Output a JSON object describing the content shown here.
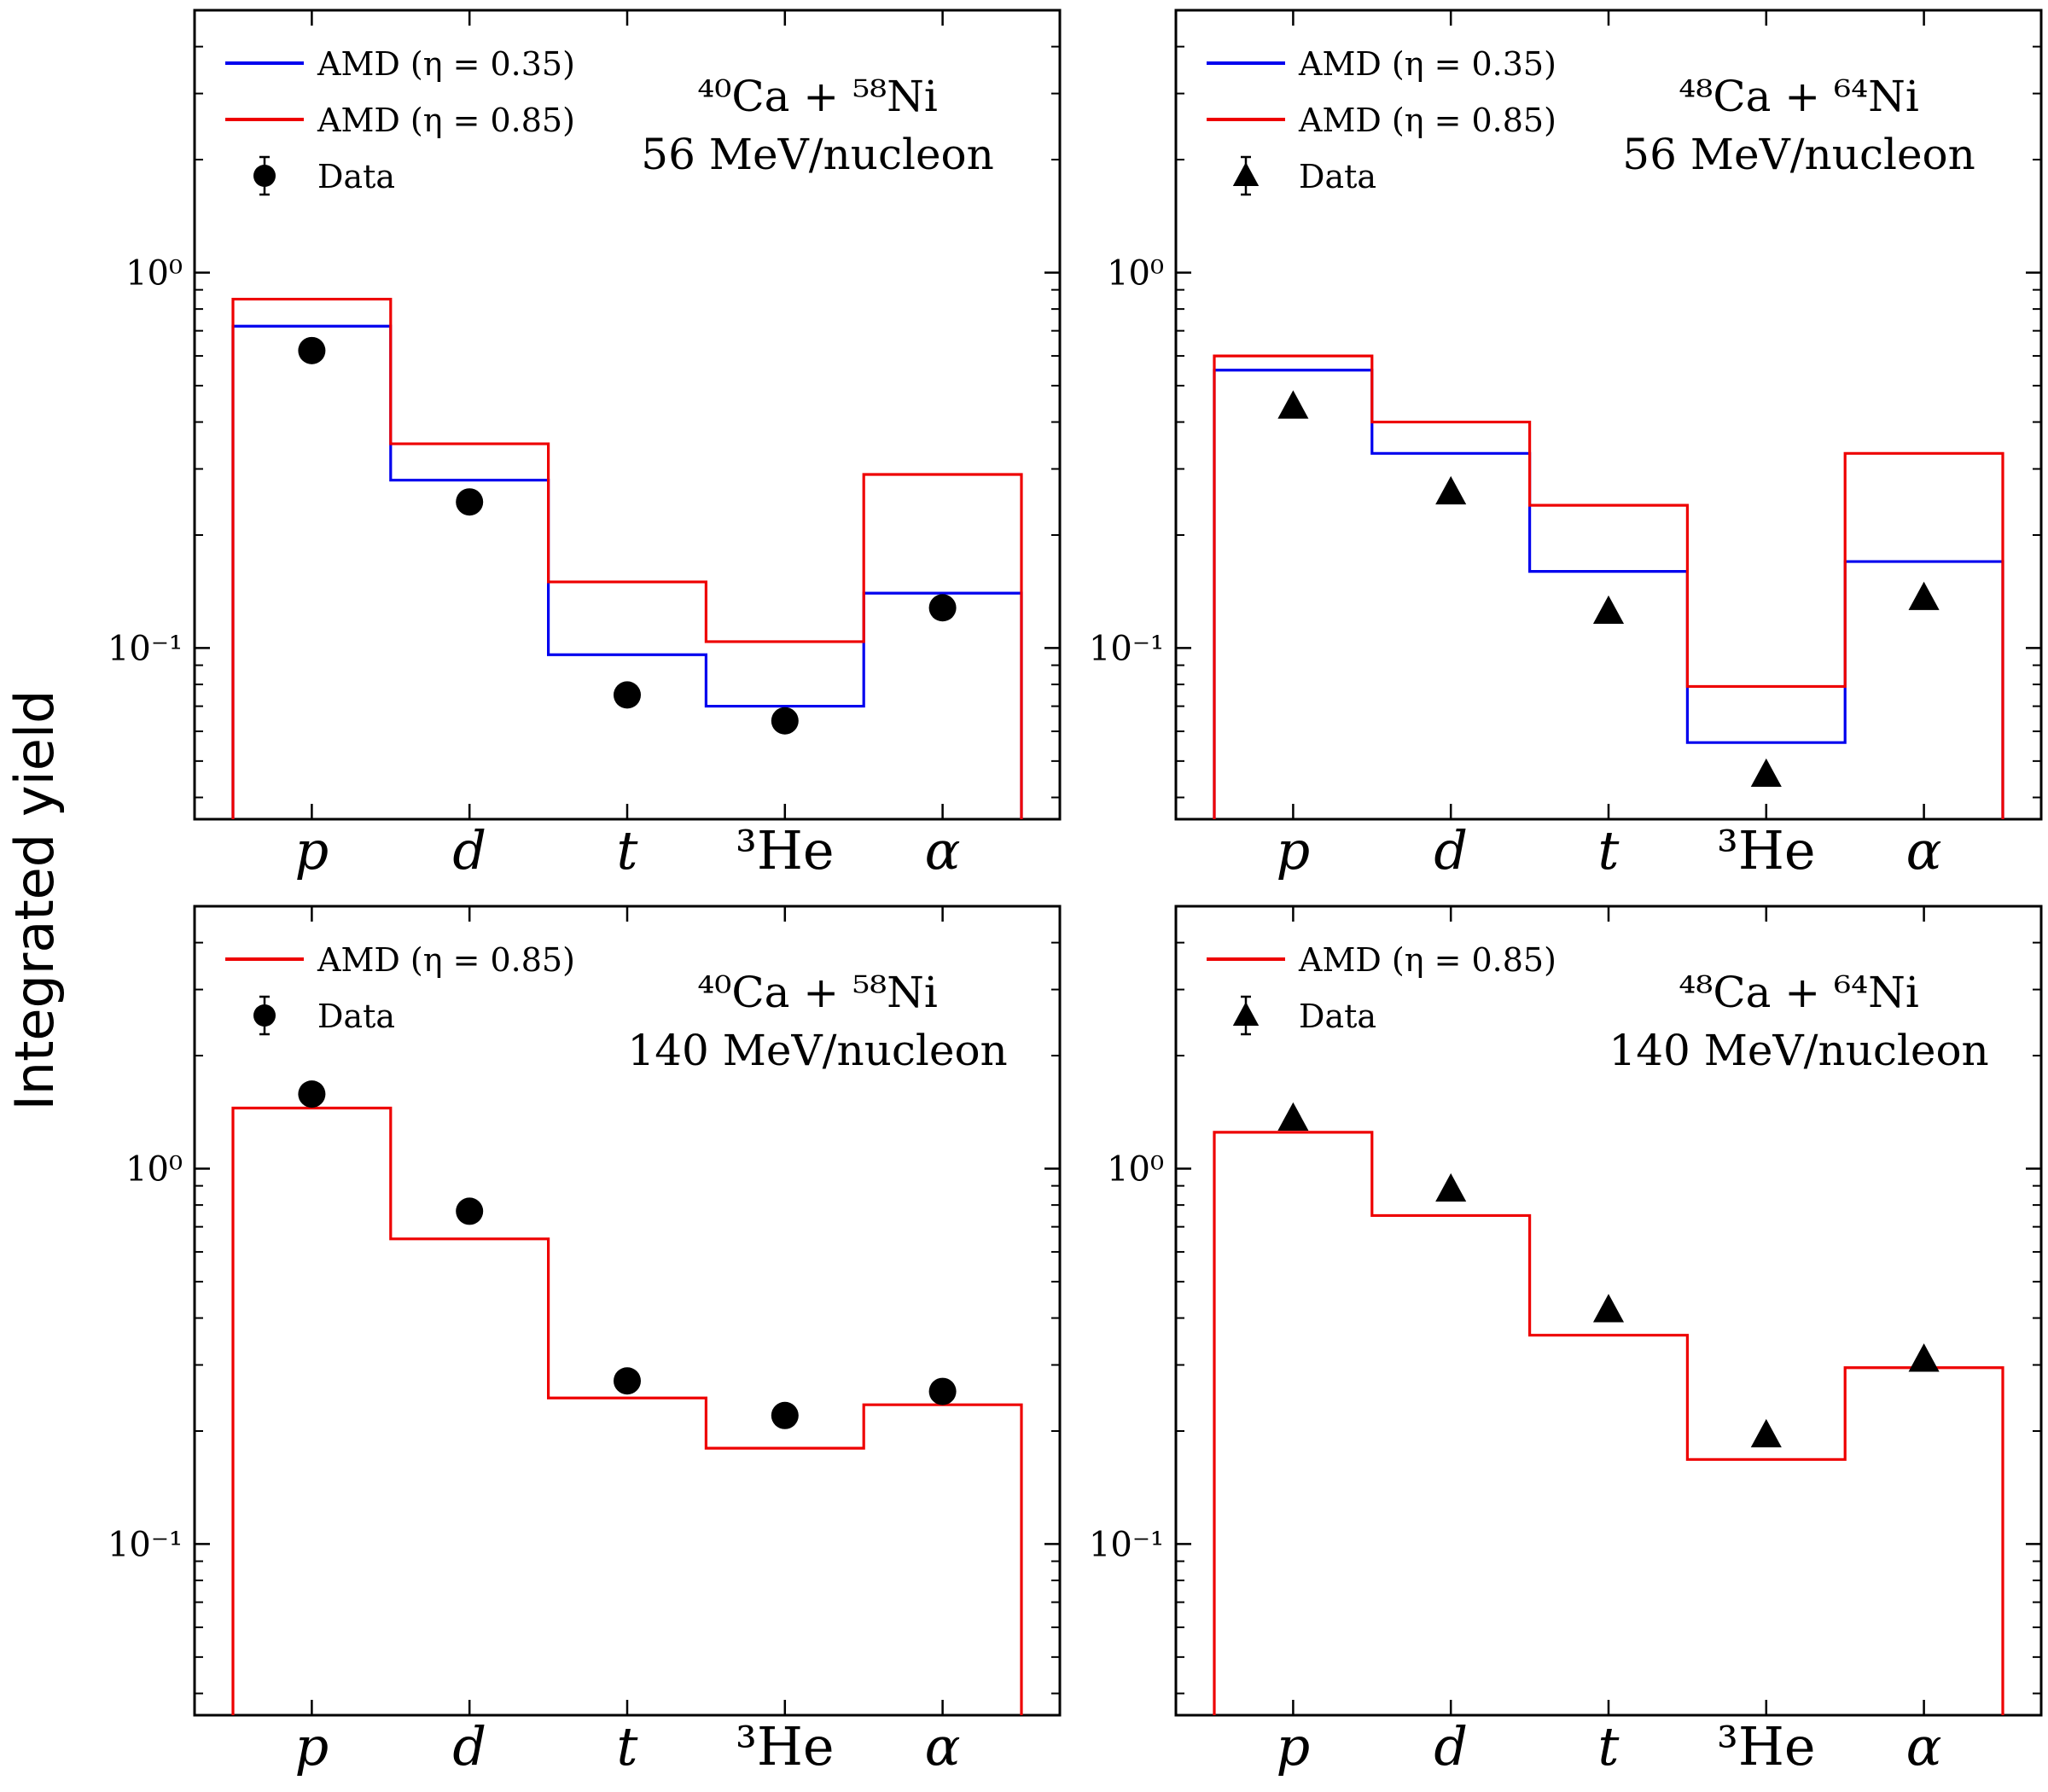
{
  "figure": {
    "ylabel": "Integrated yield",
    "colors": {
      "eta035": "#0000ee",
      "eta085": "#ee0000",
      "data": "#000000"
    }
  },
  "chart_data": [
    {
      "type": "step",
      "panel": "top-left",
      "title_lines": [
        "⁴⁰Ca + ⁵⁸Ni",
        "56 MeV/nucleon"
      ],
      "categories": [
        "p",
        "d",
        "t",
        "³He",
        "α"
      ],
      "ylim": [
        0.035,
        5
      ],
      "yscale": "log",
      "ytick_labels": [
        "10⁰",
        "10⁻¹"
      ],
      "legend_position": "top-left",
      "data_marker": "circle",
      "series": [
        {
          "name": "AMD (η = 0.35)",
          "color": "#0000ee",
          "values": [
            0.72,
            0.28,
            0.096,
            0.07,
            0.14
          ]
        },
        {
          "name": "AMD (η = 0.85)",
          "color": "#ee0000",
          "values": [
            0.85,
            0.35,
            0.15,
            0.104,
            0.29
          ]
        },
        {
          "name": "Data",
          "color": "#000000",
          "values": [
            0.62,
            0.245,
            0.075,
            0.064,
            0.128
          ]
        }
      ]
    },
    {
      "type": "step",
      "panel": "top-right",
      "title_lines": [
        "⁴⁸Ca + ⁶⁴Ni",
        "56 MeV/nucleon"
      ],
      "categories": [
        "p",
        "d",
        "t",
        "³He",
        "α"
      ],
      "ylim": [
        0.035,
        5
      ],
      "yscale": "log",
      "ytick_labels": [
        "10⁰",
        "10⁻¹"
      ],
      "legend_position": "top-left",
      "data_marker": "triangle",
      "series": [
        {
          "name": "AMD (η = 0.35)",
          "color": "#0000ee",
          "values": [
            0.55,
            0.33,
            0.16,
            0.056,
            0.17
          ]
        },
        {
          "name": "AMD (η = 0.85)",
          "color": "#ee0000",
          "values": [
            0.6,
            0.4,
            0.24,
            0.079,
            0.33
          ]
        },
        {
          "name": "Data",
          "color": "#000000",
          "values": [
            0.44,
            0.26,
            0.125,
            0.046,
            0.136
          ]
        }
      ]
    },
    {
      "type": "step",
      "panel": "bottom-left",
      "title_lines": [
        "⁴⁰Ca + ⁵⁸Ni",
        "140 MeV/nucleon"
      ],
      "categories": [
        "p",
        "d",
        "t",
        "³He",
        "α"
      ],
      "ylim": [
        0.035,
        5
      ],
      "yscale": "log",
      "ytick_labels": [
        "10⁰",
        "10⁻¹"
      ],
      "legend_position": "top-left",
      "data_marker": "circle",
      "series": [
        {
          "name": "AMD (η = 0.85)",
          "color": "#ee0000",
          "values": [
            1.45,
            0.65,
            0.245,
            0.18,
            0.235
          ]
        },
        {
          "name": "Data",
          "color": "#000000",
          "values": [
            1.58,
            0.77,
            0.272,
            0.22,
            0.255
          ]
        }
      ]
    },
    {
      "type": "step",
      "panel": "bottom-right",
      "title_lines": [
        "⁴⁸Ca + ⁶⁴Ni",
        "140 MeV/nucleon"
      ],
      "categories": [
        "p",
        "d",
        "t",
        "³He",
        "α"
      ],
      "ylim": [
        0.035,
        5
      ],
      "yscale": "log",
      "ytick_labels": [
        "10⁰",
        "10⁻¹"
      ],
      "legend_position": "top-left",
      "data_marker": "triangle",
      "series": [
        {
          "name": "AMD (η = 0.85)",
          "color": "#ee0000",
          "values": [
            1.25,
            0.75,
            0.36,
            0.168,
            0.295
          ]
        },
        {
          "name": "Data",
          "color": "#000000",
          "values": [
            1.36,
            0.88,
            0.42,
            0.195,
            0.31
          ]
        }
      ]
    }
  ]
}
